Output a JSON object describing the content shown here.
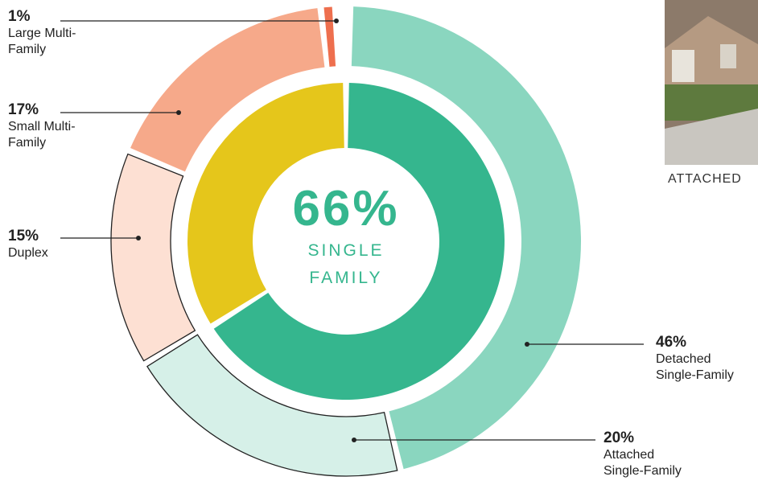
{
  "chart_data": {
    "type": "nested-pie",
    "inner": {
      "categories": [
        "SINGLE FAMILY",
        null
      ],
      "values": [
        66,
        34
      ],
      "value_labels": [
        "66%",
        null
      ],
      "colors": [
        "#35b68e",
        "#e5c61b"
      ]
    },
    "outer": {
      "categories": [
        "Detached Single-Family",
        "Attached Single-Family",
        "Duplex",
        "Small Multi-Family",
        "Large Multi-Family"
      ],
      "values": [
        46,
        20,
        15,
        17,
        1
      ],
      "value_labels": [
        "46%",
        "20%",
        "15%",
        "17%",
        "1%"
      ],
      "colors": [
        "#8ad6bf",
        "#d6f0e8",
        "#fde0d3",
        "#f6a98a",
        "#ee6f4e"
      ]
    }
  },
  "photo": {
    "caption": "ATTACHED"
  }
}
